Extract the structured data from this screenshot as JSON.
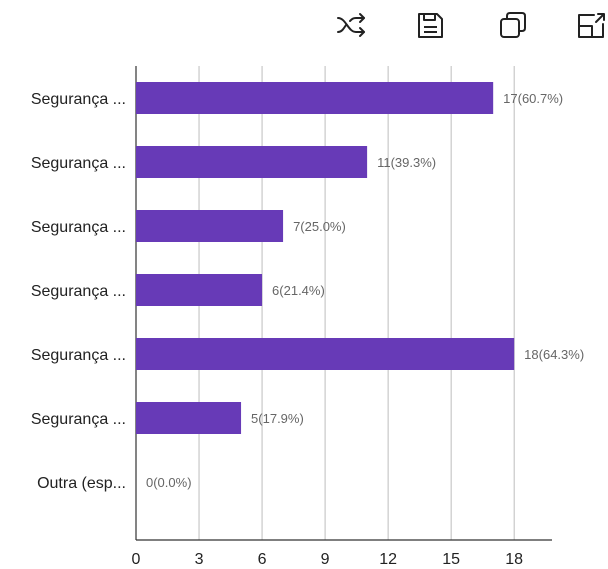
{
  "toolbar": {
    "icons": [
      "shuffle-icon",
      "save-icon",
      "copy-icon",
      "expand-icon"
    ]
  },
  "colors": {
    "bar": "#673ab7",
    "grid": "#bdbdbd",
    "axis": "#333333"
  },
  "chart_data": {
    "type": "bar",
    "orientation": "horizontal",
    "categories": [
      "Segurança ...",
      "Segurança ...",
      "Segurança ...",
      "Segurança ...",
      "Segurança ...",
      "Segurança ...",
      "Outra (esp..."
    ],
    "values": [
      17,
      11,
      7,
      6,
      18,
      5,
      0
    ],
    "data_labels": [
      "17(60.7%)",
      "11(39.3%)",
      "7(25.0%)",
      "6(21.4%)",
      "18(64.3%)",
      "5(17.9%)",
      "0(0.0%)"
    ],
    "xticks": [
      0,
      3,
      6,
      9,
      12,
      15,
      18
    ],
    "xlim": [
      0,
      19.8
    ],
    "grid": true
  }
}
